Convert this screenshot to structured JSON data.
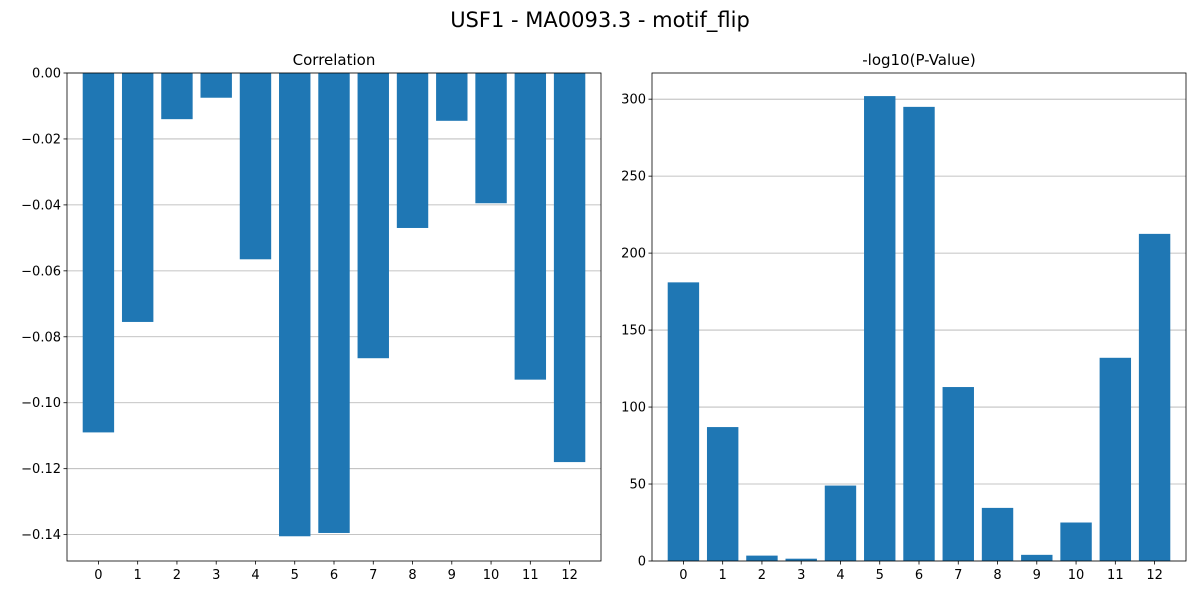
{
  "figure": {
    "suptitle": "USF1 - MA0093.3 - motif_flip"
  },
  "chart_data": [
    {
      "type": "bar",
      "title": "Correlation",
      "categories": [
        "0",
        "1",
        "2",
        "3",
        "4",
        "5",
        "6",
        "7",
        "8",
        "9",
        "10",
        "11",
        "12"
      ],
      "values": [
        -0.109,
        -0.0755,
        -0.014,
        -0.0075,
        -0.0565,
        -0.1405,
        -0.1395,
        -0.0865,
        -0.047,
        -0.0145,
        -0.0395,
        -0.093,
        -0.118
      ],
      "ylim": [
        -0.148,
        0.0
      ],
      "yticks": [
        0.0,
        -0.02,
        -0.04,
        -0.06,
        -0.08,
        -0.1,
        -0.12,
        -0.14
      ],
      "ytick_labels": [
        "0.00",
        "−0.02",
        "−0.04",
        "−0.06",
        "−0.08",
        "−0.10",
        "−0.12",
        "−0.14"
      ],
      "grid": "y",
      "bar_color": "#1f77b4"
    },
    {
      "type": "bar",
      "title": "-log10(P-Value)",
      "categories": [
        "0",
        "1",
        "2",
        "3",
        "4",
        "5",
        "6",
        "7",
        "8",
        "9",
        "10",
        "11",
        "12"
      ],
      "values": [
        181,
        87,
        3.5,
        1.5,
        49,
        302,
        295,
        113,
        34.5,
        4,
        25,
        132,
        212.5
      ],
      "ylim": [
        0,
        317
      ],
      "yticks": [
        0,
        50,
        100,
        150,
        200,
        250,
        300
      ],
      "ytick_labels": [
        "0",
        "50",
        "100",
        "150",
        "200",
        "250",
        "300"
      ],
      "grid": "y",
      "bar_color": "#1f77b4"
    }
  ]
}
